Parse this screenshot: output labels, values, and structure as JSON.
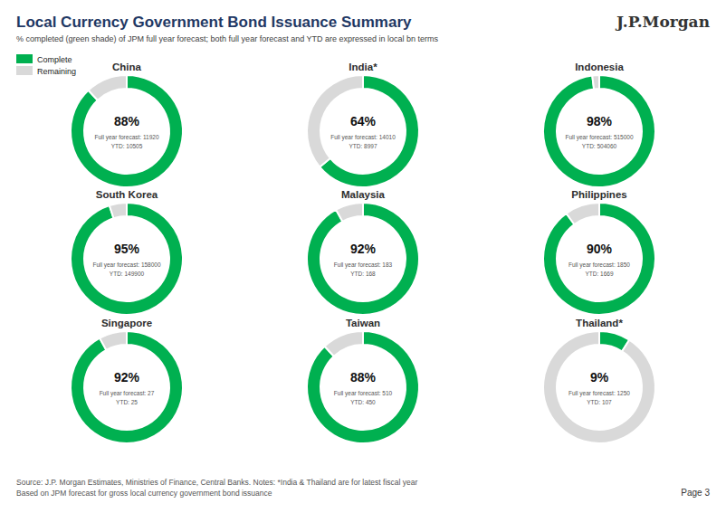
{
  "title": "Local Currency Government Bond Issuance Summary",
  "subtitle": "% completed (green shade) of JPM full year forecast; both full year forecast and YTD are expressed in local bn terms",
  "annotations": [
    "J.P.Morgan",
    "Source: J.P. Morgan Estimates, Ministries of Finance, Central Banks. Notes: *India & Thailand are for latest fiscal year",
    "Based on JPM forecast for gross local currency government bond issuance",
    "Page 3"
  ],
  "chart_data": [
    {
      "type": "pie",
      "title": "China",
      "categories": [
        "Complete",
        "Remaining"
      ],
      "values": [
        88,
        12
      ],
      "value_labels": [
        "88%",
        null
      ],
      "colors": [
        "#00b050",
        "#d9d9d9"
      ],
      "annotations": [
        "Full year forecast: 11920",
        "YTD: 10505"
      ],
      "legend": "upper left"
    },
    {
      "type": "pie",
      "title": "India*",
      "categories": [
        "Complete",
        "Remaining"
      ],
      "values": [
        64,
        36
      ],
      "value_labels": [
        "64%",
        null
      ],
      "colors": [
        "#00b050",
        "#d9d9d9"
      ],
      "annotations": [
        "Full year forecast: 14010",
        "YTD: 8997"
      ]
    },
    {
      "type": "pie",
      "title": "Indonesia",
      "categories": [
        "Complete",
        "Remaining"
      ],
      "values": [
        98,
        2
      ],
      "value_labels": [
        "98%",
        null
      ],
      "colors": [
        "#00b050",
        "#d9d9d9"
      ],
      "annotations": [
        "Full year forecast: 515000",
        "YTD: 504060"
      ]
    },
    {
      "type": "pie",
      "title": "South Korea",
      "categories": [
        "Complete",
        "Remaining"
      ],
      "values": [
        95,
        5
      ],
      "value_labels": [
        "95%",
        null
      ],
      "colors": [
        "#00b050",
        "#d9d9d9"
      ],
      "annotations": [
        "Full year forecast: 158000",
        "YTD: 149900"
      ]
    },
    {
      "type": "pie",
      "title": "Malaysia",
      "categories": [
        "Complete",
        "Remaining"
      ],
      "values": [
        92,
        8
      ],
      "value_labels": [
        "92%",
        null
      ],
      "colors": [
        "#00b050",
        "#d9d9d9"
      ],
      "annotations": [
        "Full year forecast: 183",
        "YTD: 168"
      ]
    },
    {
      "type": "pie",
      "title": "Philippines",
      "categories": [
        "Complete",
        "Remaining"
      ],
      "values": [
        90,
        10
      ],
      "value_labels": [
        "90%",
        null
      ],
      "colors": [
        "#00b050",
        "#d9d9d9"
      ],
      "annotations": [
        "Full year forecast: 1850",
        "YTD: 1669"
      ]
    },
    {
      "type": "pie",
      "title": "Singapore",
      "categories": [
        "Complete",
        "Remaining"
      ],
      "values": [
        92,
        8
      ],
      "value_labels": [
        "92%",
        null
      ],
      "colors": [
        "#00b050",
        "#d9d9d9"
      ],
      "annotations": [
        "Full year forecast: 27",
        "YTD: 25"
      ]
    },
    {
      "type": "pie",
      "title": "Taiwan",
      "categories": [
        "Complete",
        "Remaining"
      ],
      "values": [
        88,
        12
      ],
      "value_labels": [
        "88%",
        null
      ],
      "colors": [
        "#00b050",
        "#d9d9d9"
      ],
      "annotations": [
        "Full year forecast: 510",
        "YTD: 450"
      ]
    },
    {
      "type": "pie",
      "title": "Thailand*",
      "categories": [
        "Complete",
        "Remaining"
      ],
      "values": [
        9,
        91
      ],
      "value_labels": [
        "9%",
        null
      ],
      "colors": [
        "#00b050",
        "#d9d9d9"
      ],
      "annotations": [
        "Full year forecast: 1250",
        "YTD: 107"
      ]
    }
  ]
}
